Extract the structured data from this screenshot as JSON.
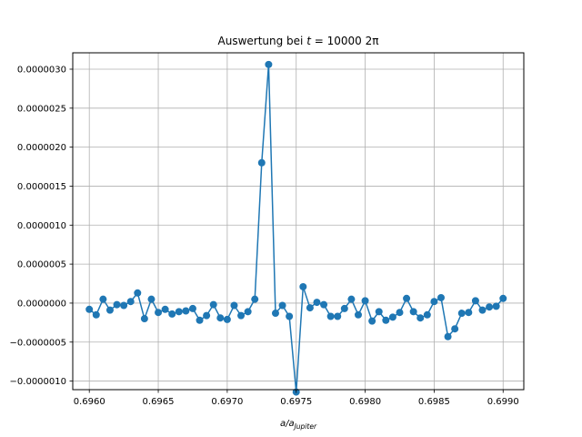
{
  "chart_data": {
    "type": "line",
    "title_prefix": "Auswertung bei ",
    "title_var": "t",
    "title_value": " = 10000 2π",
    "xlabel_main": "a/a",
    "xlabel_sub": "Jupiter",
    "ylabel": "",
    "xlim": [
      0.69588,
      0.69915
    ],
    "ylim": [
      -1.11e-06,
      3.21e-06
    ],
    "grid": true,
    "legend": "none",
    "color": "#1f77b4",
    "xticks": [
      0.696,
      0.6965,
      0.697,
      0.6975,
      0.698,
      0.6985,
      0.699
    ],
    "xtick_labels": [
      "0.6960",
      "0.6965",
      "0.6970",
      "0.6975",
      "0.6980",
      "0.6985",
      "0.6990"
    ],
    "yticks": [
      -1e-06,
      -5e-07,
      0,
      5e-07,
      1e-06,
      1.5e-06,
      2e-06,
      2.5e-06,
      3e-06
    ],
    "ytick_labels": [
      "−0.0000010",
      "−0.0000005",
      "0.0000000",
      "0.0000005",
      "0.0000010",
      "0.0000015",
      "0.0000020",
      "0.0000025",
      "0.0000030"
    ],
    "x": [
      0.696,
      0.69605,
      0.6961,
      0.69615,
      0.6962,
      0.69625,
      0.6963,
      0.69635,
      0.6964,
      0.69645,
      0.6965,
      0.69655,
      0.6966,
      0.69665,
      0.6967,
      0.69675,
      0.6968,
      0.69685,
      0.6969,
      0.69695,
      0.697,
      0.69705,
      0.6971,
      0.69715,
      0.6972,
      0.69725,
      0.6973,
      0.69735,
      0.6974,
      0.69745,
      0.6975,
      0.69755,
      0.6976,
      0.69765,
      0.6977,
      0.69775,
      0.6978,
      0.69785,
      0.6979,
      0.69795,
      0.698,
      0.69805,
      0.6981,
      0.69815,
      0.6982,
      0.69825,
      0.6983,
      0.69835,
      0.6984,
      0.69845,
      0.6985,
      0.69855,
      0.6986,
      0.69865,
      0.6987,
      0.69875,
      0.6988,
      0.69885,
      0.6989,
      0.69895,
      0.699
    ],
    "y": [
      -8e-08,
      -1.5e-07,
      5e-08,
      -9e-08,
      -2e-08,
      -3e-08,
      2e-08,
      1.3e-07,
      -2e-07,
      5e-08,
      -1.2e-07,
      -8e-08,
      -1.4e-07,
      -1.1e-07,
      -1e-07,
      -7e-08,
      -2.2e-07,
      -1.6e-07,
      -2e-08,
      -1.9e-07,
      -2.1e-07,
      -3e-08,
      -1.6e-07,
      -1.1e-07,
      5e-08,
      1.8e-06,
      3.06e-06,
      -1.3e-07,
      -3e-08,
      -1.7e-07,
      -1.14e-06,
      2.1e-07,
      -6e-08,
      1e-08,
      -2e-08,
      -1.7e-07,
      -1.7e-07,
      -7e-08,
      5e-08,
      -1.5e-07,
      3e-08,
      -2.3e-07,
      -1.1e-07,
      -2.2e-07,
      -1.8e-07,
      -1.2e-07,
      6e-08,
      -1.1e-07,
      -1.9e-07,
      -1.5e-07,
      2e-08,
      7e-08,
      -4.3e-07,
      -3.3e-07,
      -1.3e-07,
      -1.2e-07,
      3e-08,
      -9e-08,
      -5e-08,
      -4e-08,
      6e-08
    ]
  }
}
